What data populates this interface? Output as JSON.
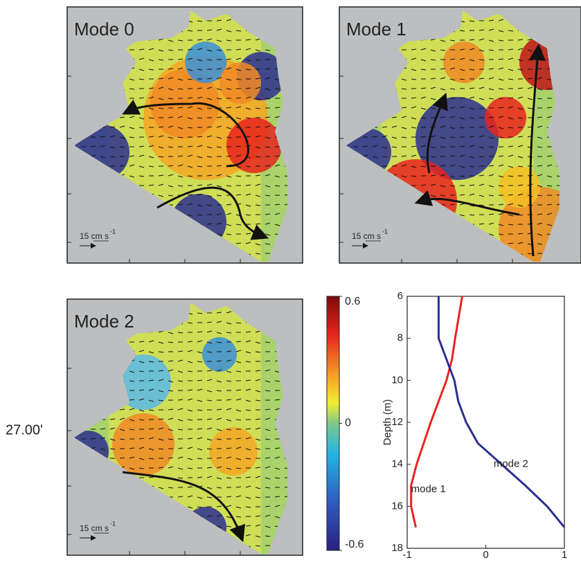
{
  "panels": [
    {
      "title": "Mode 0",
      "scale_label": "15 cm s",
      "scale_exp": "-1"
    },
    {
      "title": "Mode 1",
      "scale_label": "15 cm s",
      "scale_exp": "-1"
    },
    {
      "title": "Mode 2",
      "scale_label": "15 cm s",
      "scale_exp": "-1"
    }
  ],
  "lat_label": "27.00'",
  "colorbar": {
    "lim": [
      -0.6,
      0.6
    ],
    "ticks": [
      0.6,
      0,
      -0.6
    ]
  },
  "chart_data": {
    "type": "line",
    "ylabel": "Depth (m)",
    "xlim": [
      -1,
      1
    ],
    "xticks": [
      -1,
      0,
      1
    ],
    "ylim": [
      18,
      6
    ],
    "yticks": [
      6,
      8,
      10,
      12,
      14,
      16,
      18
    ],
    "depths": [
      6,
      8,
      9,
      10,
      11,
      12,
      13,
      14,
      15,
      16,
      17
    ],
    "series": [
      {
        "name": "mode 1",
        "color": "#e8231f",
        "values": [
          -0.3,
          -0.39,
          -0.43,
          -0.5,
          -0.6,
          -0.7,
          -0.79,
          -0.88,
          -0.95,
          -0.95,
          -0.89
        ]
      },
      {
        "name": "mode 2",
        "color": "#2b2f8f",
        "values": [
          -0.6,
          -0.6,
          -0.5,
          -0.4,
          -0.35,
          -0.25,
          -0.1,
          0.2,
          0.5,
          0.78,
          1
        ]
      }
    ]
  }
}
